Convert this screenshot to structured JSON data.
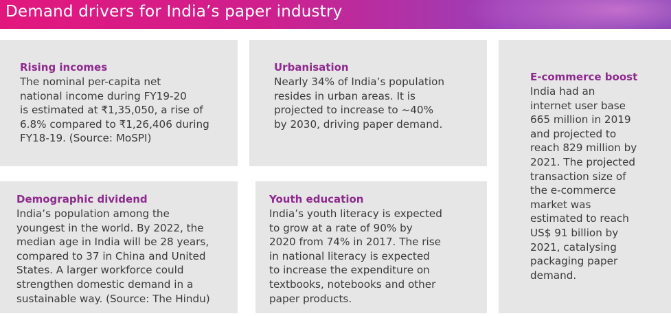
{
  "header": {
    "title": "Demand drivers for India’s paper industry"
  },
  "cards": {
    "rising_incomes": {
      "heading": "Rising incomes",
      "lines": [
        "The nominal per-capita net",
        "national income during FY19-20",
        "is estimated at ₹1,35,050, a rise of",
        "6.8% compared to ₹1,26,406 during",
        "FY18-19. (Source: MoSPI)"
      ]
    },
    "urbanisation": {
      "heading": "Urbanisation",
      "lines": [
        "Nearly 34% of India’s population",
        "resides in urban areas. It is",
        "projected to increase to ~40%",
        "by 2030, driving paper demand."
      ]
    },
    "ecommerce": {
      "heading": "E-commerce boost",
      "lines": [
        "India had an",
        "internet user base",
        "665 million in 2019",
        "and projected to",
        "reach  829 million by",
        "2021. The projected",
        "transaction size of",
        "the e-commerce",
        "market was",
        "estimated to reach",
        "US$ 91 billion by",
        "2021, catalysing",
        "packaging paper",
        "demand."
      ]
    },
    "demographic": {
      "heading": "Demographic dividend",
      "lines": [
        "India’s population among the",
        "youngest in the world. By 2022, the",
        "median age in India will be 28 years,",
        "compared to 37 in China and United",
        "States. A larger workforce could",
        "strengthen domestic demand in a",
        "sustainable way. (Source: The Hindu)"
      ]
    },
    "youth_education": {
      "heading": "Youth education",
      "lines": [
        "India’s youth literacy is expected",
        "to grow at a rate of 90% by",
        "2020 from 74% in 2017. The rise",
        "in national literacy is expected",
        "to increase the expenditure on",
        "textbooks, notebooks and other",
        "paper products."
      ]
    }
  }
}
